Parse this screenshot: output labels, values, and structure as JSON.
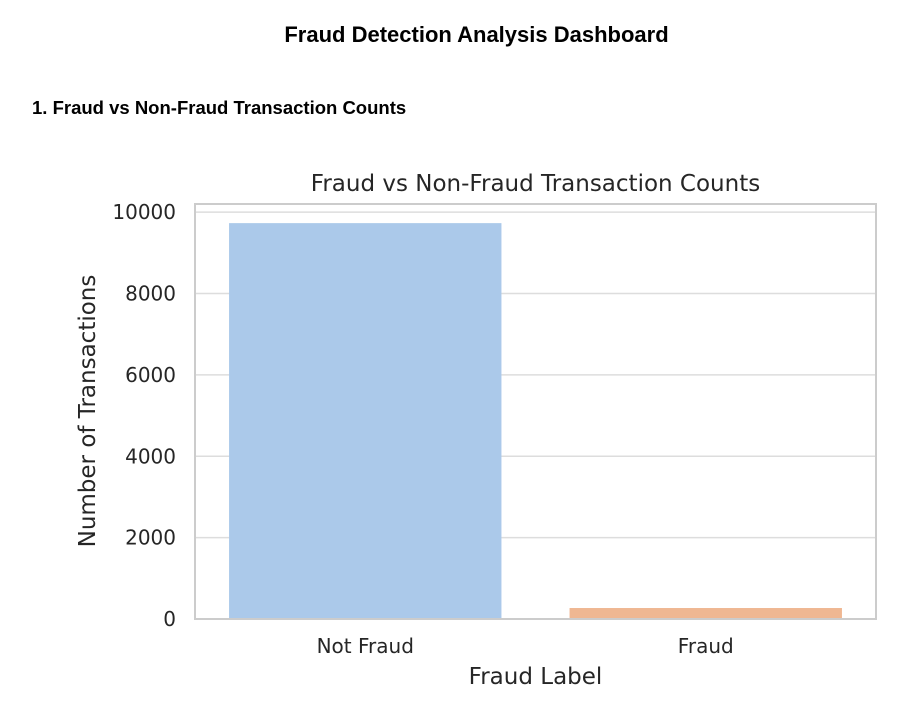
{
  "page": {
    "title": "Fraud Detection Analysis Dashboard",
    "section_title": "1. Fraud vs Non-Fraud Transaction Counts"
  },
  "chart_data": {
    "type": "bar",
    "title": "Fraud vs Non-Fraud Transaction Counts",
    "xlabel": "Fraud Label",
    "ylabel": "Number of Transactions",
    "categories": [
      "Not Fraud",
      "Fraud"
    ],
    "values": [
      9730,
      270
    ],
    "colors": [
      "#abc9ea",
      "#efb792"
    ],
    "ylim": [
      0,
      10200
    ],
    "yticks": [
      0,
      2000,
      4000,
      6000,
      8000,
      10000
    ],
    "grid": true
  }
}
